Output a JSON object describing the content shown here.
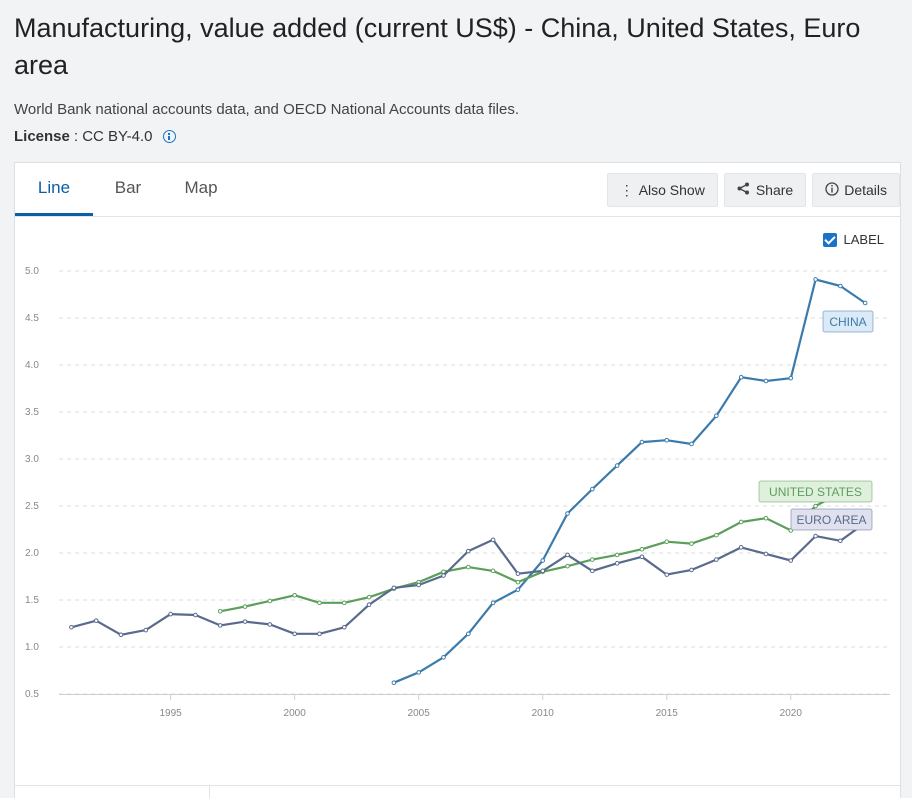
{
  "header": {
    "title": "Manufacturing, value added (current US$) - China, United States, Euro area",
    "source": "World Bank national accounts data, and OECD National Accounts data files.",
    "license_label": "License",
    "license_value": ": CC BY-4.0"
  },
  "tabs": [
    {
      "label": "Line",
      "active": true
    },
    {
      "label": "Bar",
      "active": false
    },
    {
      "label": "Map",
      "active": false
    }
  ],
  "actions": {
    "also_show": "Also Show",
    "share": "Share",
    "details": "Details"
  },
  "label_toggle": {
    "label": "LABEL",
    "checked": true
  },
  "chart_data": {
    "type": "line",
    "title": "",
    "xlabel": "",
    "ylabel": "",
    "xlim": [
      1990.5,
      2024
    ],
    "ylim": [
      0.5,
      5.0
    ],
    "x_ticks": [
      1995,
      2000,
      2005,
      2010,
      2015,
      2020
    ],
    "y_ticks": [
      "0.5",
      "1.0",
      "1.5",
      "2.0",
      "2.5",
      "3.0",
      "3.5",
      "4.0",
      "4.5",
      "5.0"
    ],
    "grid": true,
    "series": [
      {
        "name": "CHINA",
        "color": "#3b7bab",
        "label_bg": "#dbeaf6",
        "x": [
          2004,
          2005,
          2006,
          2007,
          2008,
          2009,
          2010,
          2011,
          2012,
          2013,
          2014,
          2015,
          2016,
          2017,
          2018,
          2019,
          2020,
          2021,
          2022,
          2023
        ],
        "values": [
          0.62,
          0.73,
          0.89,
          1.14,
          1.47,
          1.61,
          1.92,
          2.42,
          2.68,
          2.93,
          3.18,
          3.2,
          3.16,
          3.46,
          3.87,
          3.83,
          3.86,
          4.91,
          4.84,
          4.66
        ]
      },
      {
        "name": "UNITED STATES",
        "color": "#5b9f5b",
        "label_bg": "#dff0dc",
        "x": [
          1997,
          1998,
          1999,
          2000,
          2001,
          2002,
          2003,
          2004,
          2005,
          2006,
          2007,
          2008,
          2009,
          2010,
          2011,
          2012,
          2013,
          2014,
          2015,
          2016,
          2017,
          2018,
          2019,
          2020,
          2021,
          2022
        ],
        "values": [
          1.38,
          1.43,
          1.49,
          1.55,
          1.47,
          1.47,
          1.53,
          1.62,
          1.69,
          1.8,
          1.85,
          1.81,
          1.69,
          1.8,
          1.86,
          1.93,
          1.98,
          2.04,
          2.12,
          2.1,
          2.19,
          2.33,
          2.37,
          2.24,
          2.5,
          2.64
        ]
      },
      {
        "name": "EURO AREA",
        "color": "#5a6a8c",
        "label_bg": "#dfe1ee",
        "x": [
          1991,
          1992,
          1993,
          1994,
          1995,
          1996,
          1997,
          1998,
          1999,
          2000,
          2001,
          2002,
          2003,
          2004,
          2005,
          2006,
          2007,
          2008,
          2009,
          2010,
          2011,
          2012,
          2013,
          2014,
          2015,
          2016,
          2017,
          2018,
          2019,
          2020,
          2021,
          2022,
          2023
        ],
        "values": [
          1.21,
          1.28,
          1.13,
          1.18,
          1.35,
          1.34,
          1.23,
          1.27,
          1.24,
          1.14,
          1.14,
          1.21,
          1.45,
          1.63,
          1.66,
          1.76,
          2.02,
          2.14,
          1.78,
          1.81,
          1.98,
          1.81,
          1.89,
          1.96,
          1.77,
          1.82,
          1.93,
          2.06,
          1.99,
          1.92,
          2.18,
          2.13,
          2.32
        ]
      }
    ]
  }
}
